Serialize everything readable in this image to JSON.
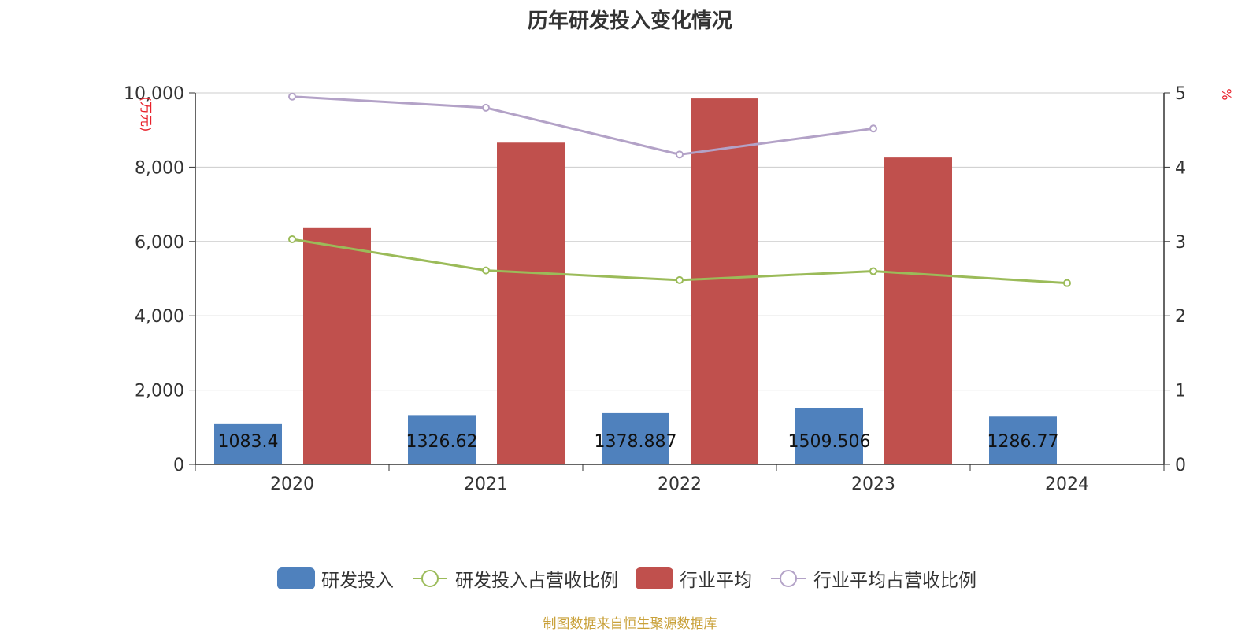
{
  "chart_data": {
    "type": "bar",
    "title": "历年研发投入变化情况",
    "categories": [
      "2020",
      "2021",
      "2022",
      "2023",
      "2024"
    ],
    "left_axis": {
      "unit_label": "(万元)",
      "ylim": [
        0,
        10000
      ],
      "ticks": [
        0,
        2000,
        4000,
        6000,
        8000,
        10000
      ],
      "tick_labels": [
        "0",
        "2,000",
        "4,000",
        "6,000",
        "8,000",
        "10,000"
      ]
    },
    "right_axis": {
      "unit_label": "%",
      "ylim": [
        0,
        5
      ],
      "ticks": [
        0,
        1,
        2,
        3,
        4,
        5
      ],
      "tick_labels": [
        "0",
        "1",
        "2",
        "3",
        "4",
        "5"
      ]
    },
    "grid": true,
    "legend_position": "bottom-center",
    "series": [
      {
        "name": "研发投入",
        "kind": "bar",
        "axis": "left",
        "color": "#4f81bd",
        "values": [
          1083.4,
          1326.62,
          1378.887,
          1509.506,
          1286.77
        ],
        "labels": [
          "1083.4",
          "1326.62",
          "1378.887",
          "1509.506",
          "1286.77"
        ]
      },
      {
        "name": "研发投入占营收比例",
        "kind": "line",
        "axis": "right",
        "color": "#9bbb59",
        "values": [
          3.03,
          2.61,
          2.48,
          2.6,
          2.44
        ]
      },
      {
        "name": "行业平均",
        "kind": "bar",
        "axis": "left",
        "color": "#c0504d",
        "values": [
          6360,
          8660,
          9850,
          8260,
          null
        ]
      },
      {
        "name": "行业平均占营收比例",
        "kind": "line",
        "axis": "right",
        "color": "#b3a2c7",
        "values": [
          4.95,
          4.8,
          4.17,
          4.52,
          null
        ]
      }
    ]
  },
  "footer": {
    "source": "制图数据来自恒生聚源数据库"
  }
}
